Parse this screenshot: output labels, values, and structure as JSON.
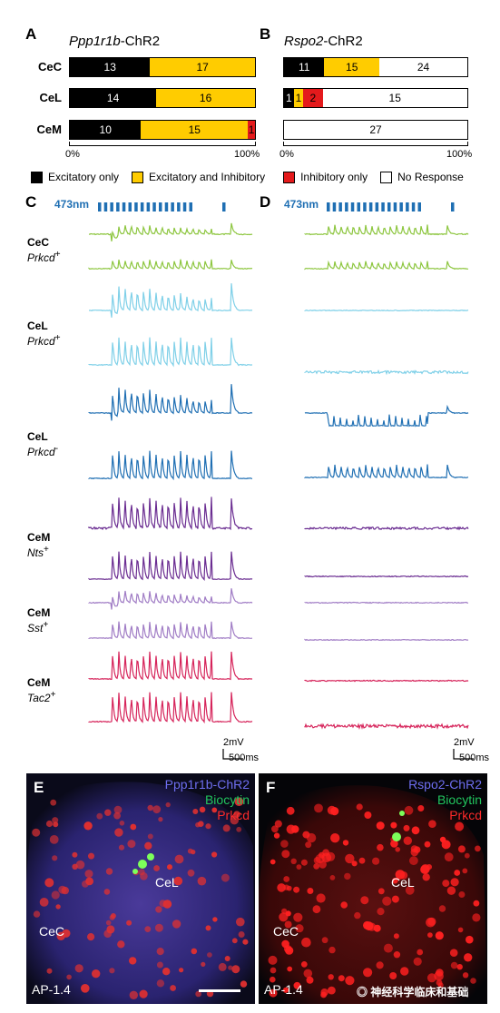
{
  "panels": {
    "A": {
      "label": "A",
      "title_gene": "Ppp1r1b",
      "title_suffix": "-ChR2",
      "rows": [
        {
          "name": "CeC",
          "segs": [
            {
              "v": 13,
              "c": "#000000",
              "t": "#ffffff",
              "label": "13"
            },
            {
              "v": 17,
              "c": "#ffcc00",
              "t": "#000000",
              "label": "17"
            }
          ]
        },
        {
          "name": "CeL",
          "segs": [
            {
              "v": 14,
              "c": "#000000",
              "t": "#ffffff",
              "label": "14"
            },
            {
              "v": 16,
              "c": "#ffcc00",
              "t": "#000000",
              "label": "16"
            }
          ]
        },
        {
          "name": "CeM",
          "segs": [
            {
              "v": 10,
              "c": "#000000",
              "t": "#ffffff",
              "label": "10"
            },
            {
              "v": 15,
              "c": "#ffcc00",
              "t": "#000000",
              "label": "15"
            },
            {
              "v": 1,
              "c": "#e41a1c",
              "t": "#000000",
              "label": "1"
            }
          ]
        }
      ],
      "axis": [
        "0%",
        "100%"
      ]
    },
    "B": {
      "label": "B",
      "title_gene": "Rspo2",
      "title_suffix": "-ChR2",
      "rows": [
        {
          "name": "CeC",
          "segs": [
            {
              "v": 11,
              "c": "#000000",
              "t": "#ffffff",
              "label": "11"
            },
            {
              "v": 15,
              "c": "#ffcc00",
              "t": "#000000",
              "label": "15"
            },
            {
              "v": 24,
              "c": "#ffffff",
              "t": "#000000",
              "label": "24"
            }
          ]
        },
        {
          "name": "CeL",
          "segs": [
            {
              "v": 1,
              "c": "#000000",
              "t": "#ffffff",
              "label": "1"
            },
            {
              "v": 1,
              "c": "#ffcc00",
              "t": "#000000",
              "label": "1"
            },
            {
              "v": 2,
              "c": "#e41a1c",
              "t": "#000000",
              "label": "2"
            },
            {
              "v": 15,
              "c": "#ffffff",
              "t": "#000000",
              "label": "15"
            }
          ]
        },
        {
          "name": "CeM",
          "segs": [
            {
              "v": 27,
              "c": "#ffffff",
              "t": "#000000",
              "label": "27"
            }
          ]
        }
      ],
      "axis": [
        "0%",
        "100%"
      ]
    }
  },
  "legend": [
    {
      "label": "Excitatory only",
      "color": "#000000"
    },
    {
      "label": "Excitatory and Inhibitory",
      "color": "#ffcc00"
    },
    {
      "label": "Inhibitory only",
      "color": "#e41a1c"
    },
    {
      "label": "No Response",
      "color": "#ffffff"
    }
  ],
  "traces": {
    "C_label": "C",
    "D_label": "D",
    "laser": "473nm",
    "cells": [
      {
        "region": "CeC",
        "marker": "Prkcd",
        "sup": "+",
        "color": "#8dc63f"
      },
      {
        "region": "CeL",
        "marker": "Prkcd",
        "sup": "+",
        "color": "#7fd0e8"
      },
      {
        "region": "CeL",
        "marker": "Prkcd",
        "sup": "-",
        "color": "#1f6fb3"
      },
      {
        "region": "CeM",
        "marker": "Nts",
        "sup": "+",
        "color": "#6a2c91"
      },
      {
        "region": "CeM",
        "marker": "Sst",
        "sup": "+",
        "color": "#a07cc5"
      },
      {
        "region": "CeM",
        "marker": "Tac2",
        "sup": "+",
        "color": "#d6235a"
      }
    ],
    "scale_v": "2mV",
    "scale_t": "500ms"
  },
  "micrographs": {
    "E": {
      "label": "E",
      "chr2": "Ppp1r1b-ChR2",
      "biocytin": "Biocytin",
      "prkcd": "Prkcd",
      "cel": "CeL",
      "cec": "CeC",
      "ap": "AP-1.4",
      "chr2_color": "#6e6ef0",
      "biocytin_color": "#22c55e",
      "prkcd_color": "#ff2a2a"
    },
    "F": {
      "label": "F",
      "chr2": "Rspo2-ChR2",
      "biocytin": "Biocytin",
      "prkcd": "Prkcd",
      "cel": "CeL",
      "cec": "CeC",
      "ap": "AP-1.4",
      "watermark": "神经科学临床和基础"
    }
  }
}
